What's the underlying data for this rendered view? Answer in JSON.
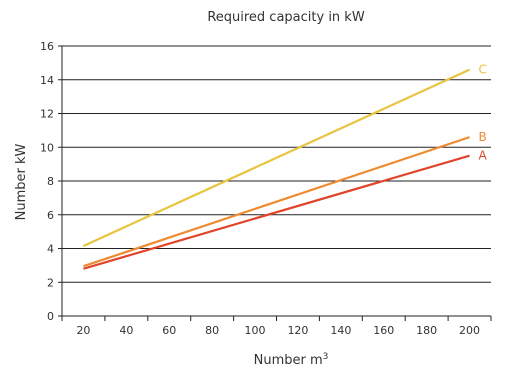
{
  "chart_data": {
    "type": "line",
    "title": "Required capacity in kW",
    "xlabel": "Number m",
    "xlabel_sup": "3",
    "ylabel": "Number kW",
    "xlim": [
      10,
      210
    ],
    "ylim": [
      0,
      16
    ],
    "x_ticks": [
      20,
      40,
      60,
      80,
      100,
      120,
      140,
      160,
      180,
      200
    ],
    "y_ticks": [
      0,
      2,
      4,
      6,
      8,
      10,
      12,
      14,
      16
    ],
    "grid": "horizontal",
    "series": [
      {
        "name": "A",
        "color": "#e0452b",
        "x": [
          20,
          200
        ],
        "y": [
          2.8,
          9.5
        ]
      },
      {
        "name": "B",
        "color": "#ef8a2e",
        "x": [
          20,
          200
        ],
        "y": [
          2.95,
          10.6
        ]
      },
      {
        "name": "C",
        "color": "#e8c43f",
        "x": [
          20,
          200
        ],
        "y": [
          4.15,
          14.6
        ]
      }
    ]
  }
}
